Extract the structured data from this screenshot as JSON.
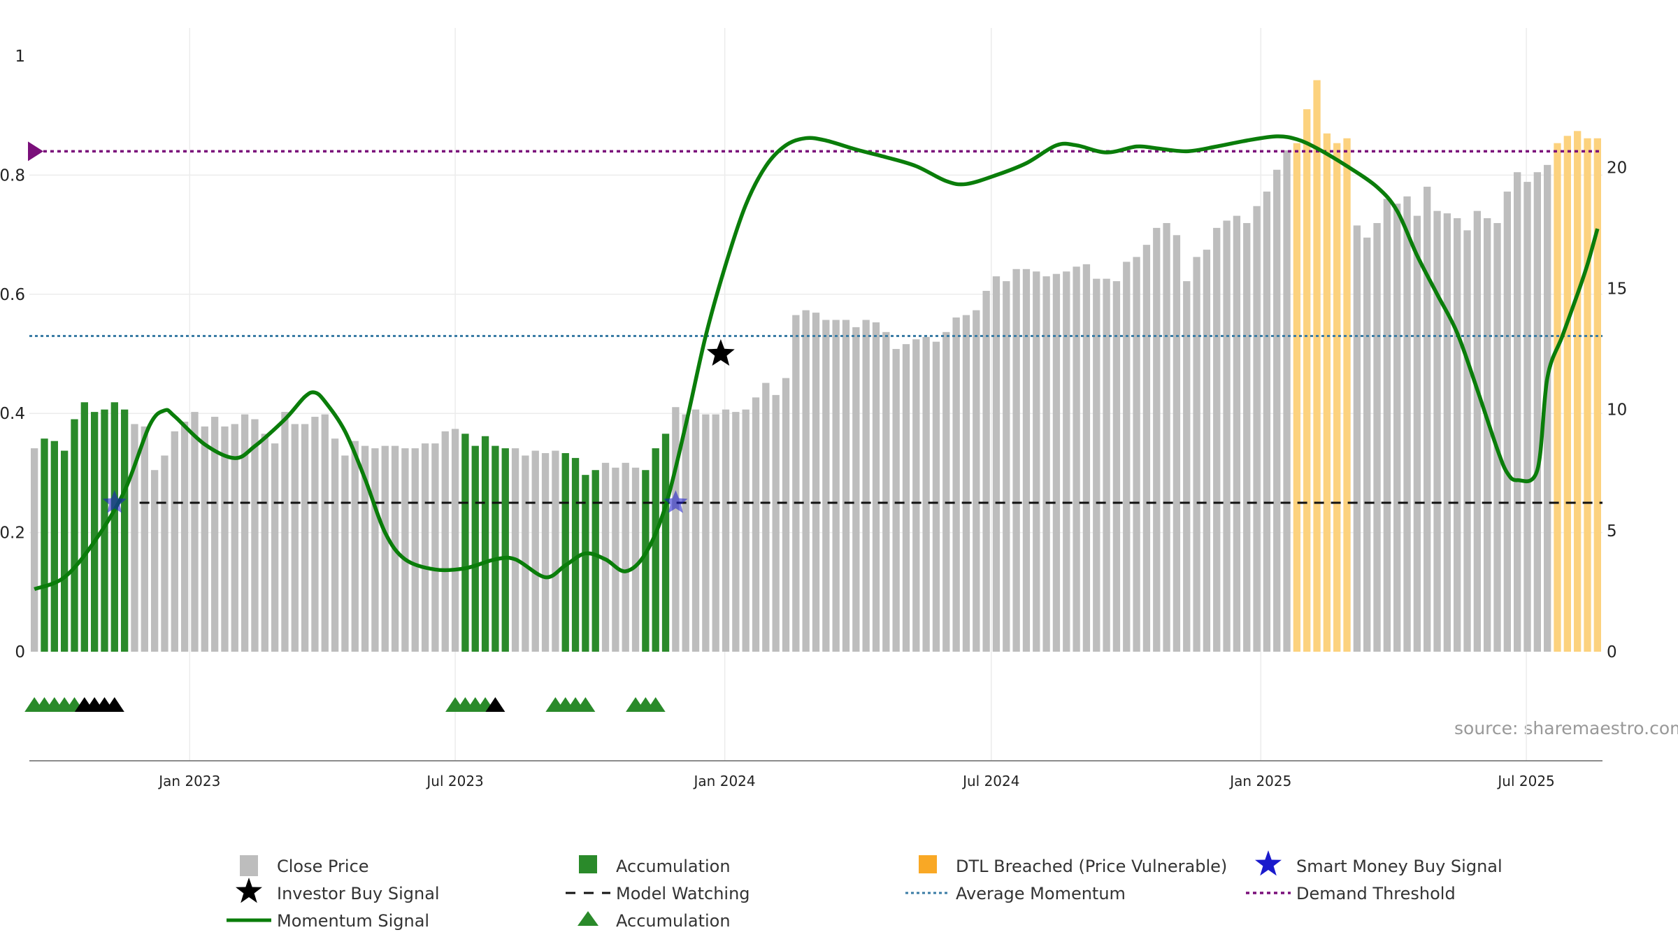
{
  "chart_data": {
    "type": "bar",
    "source": "source: sharemaestro.com",
    "colors": {
      "close": "#bdbdbd",
      "accumulation": "#2a8a2a",
      "dtl": "#fcd27e",
      "momentum": "#0a7d0a",
      "watching": "#111111",
      "average": "#3a7ca5",
      "demand": "#7a0f7a",
      "smart": "#1a1acc"
    },
    "left_axis": {
      "range": [
        0,
        1
      ],
      "ticks": [
        "0",
        "0.2",
        "0.4",
        "0.6",
        "0.8",
        "1"
      ]
    },
    "right_axis": {
      "range": [
        0,
        24.6
      ],
      "ticks": [
        "0",
        "5",
        "10",
        "15",
        "20"
      ]
    },
    "x_ticks": [
      {
        "label": "Jan 2023",
        "index": 15.5
      },
      {
        "label": "Jul 2023",
        "index": 42.0
      },
      {
        "label": "Jan 2024",
        "index": 68.9
      },
      {
        "label": "Jul 2024",
        "index": 95.5
      },
      {
        "label": "Jan 2025",
        "index": 122.4
      },
      {
        "label": "Jul 2025",
        "index": 148.9
      }
    ],
    "close_prices": [
      8.4,
      8.8,
      8.7,
      8.3,
      9.6,
      10.3,
      9.9,
      10.0,
      10.3,
      10.0,
      9.4,
      9.3,
      7.5,
      8.1,
      9.1,
      9.5,
      9.9,
      9.3,
      9.7,
      9.3,
      9.4,
      9.8,
      9.6,
      9.0,
      8.6,
      9.9,
      9.4,
      9.4,
      9.7,
      9.8,
      8.8,
      8.1,
      8.7,
      8.5,
      8.4,
      8.5,
      8.5,
      8.4,
      8.4,
      8.6,
      8.6,
      9.1,
      9.2,
      9.0,
      8.5,
      8.9,
      8.5,
      8.4,
      8.4,
      8.1,
      8.3,
      8.2,
      8.3,
      8.2,
      8.0,
      7.3,
      7.5,
      7.8,
      7.6,
      7.8,
      7.6,
      7.5,
      8.4,
      9.0,
      10.1,
      9.8,
      10.0,
      9.8,
      9.8,
      10.0,
      9.9,
      10.0,
      10.5,
      11.1,
      10.6,
      11.3,
      13.9,
      14.1,
      14.0,
      13.7,
      13.7,
      13.7,
      13.4,
      13.7,
      13.6,
      13.2,
      12.5,
      12.7,
      12.9,
      13.0,
      12.8,
      13.2,
      13.8,
      13.9,
      14.1,
      14.9,
      15.5,
      15.3,
      15.8,
      15.8,
      15.7,
      15.5,
      15.6,
      15.7,
      15.9,
      16.0,
      15.4,
      15.4,
      15.3,
      16.1,
      16.3,
      16.8,
      17.5,
      17.7,
      17.2,
      15.3,
      16.3,
      16.6,
      17.5,
      17.8,
      18.0,
      17.7,
      18.4,
      19.0,
      19.9,
      20.7,
      21.0,
      22.4,
      23.6,
      21.4,
      21.0,
      21.2,
      17.6,
      17.1,
      17.7,
      18.7,
      18.5,
      18.8,
      18.0,
      19.2,
      18.2,
      18.1,
      17.9,
      17.4,
      18.2,
      17.9,
      17.7,
      19.0,
      19.8,
      19.4,
      19.8,
      20.1,
      21.0,
      21.3,
      21.5,
      21.2,
      21.2
    ],
    "accumulation_bars": [
      1,
      2,
      3,
      4,
      5,
      6,
      7,
      8,
      9,
      43,
      44,
      45,
      46,
      47,
      53,
      54,
      55,
      56,
      61,
      62,
      63
    ],
    "dtl_bars": [
      126,
      127,
      128,
      129,
      130,
      131,
      152,
      153,
      154,
      155,
      156
    ],
    "momentum_keypoints": [
      [
        0,
        0.105
      ],
      [
        3,
        0.125
      ],
      [
        6,
        0.185
      ],
      [
        9,
        0.27
      ],
      [
        11.5,
        0.38
      ],
      [
        13,
        0.405
      ],
      [
        14,
        0.395
      ],
      [
        17,
        0.348
      ],
      [
        20,
        0.325
      ],
      [
        22,
        0.345
      ],
      [
        25,
        0.39
      ],
      [
        27,
        0.428
      ],
      [
        28,
        0.435
      ],
      [
        29,
        0.42
      ],
      [
        31,
        0.37
      ],
      [
        33,
        0.29
      ],
      [
        35,
        0.2
      ],
      [
        37,
        0.155
      ],
      [
        40,
        0.138
      ],
      [
        43,
        0.14
      ],
      [
        46,
        0.155
      ],
      [
        48,
        0.155
      ],
      [
        51,
        0.125
      ],
      [
        53,
        0.145
      ],
      [
        55,
        0.165
      ],
      [
        57,
        0.155
      ],
      [
        59,
        0.135
      ],
      [
        61,
        0.165
      ],
      [
        63,
        0.245
      ],
      [
        65,
        0.38
      ],
      [
        67,
        0.53
      ],
      [
        69,
        0.65
      ],
      [
        71,
        0.75
      ],
      [
        73,
        0.815
      ],
      [
        75,
        0.85
      ],
      [
        77,
        0.862
      ],
      [
        79,
        0.858
      ],
      [
        82,
        0.843
      ],
      [
        85,
        0.83
      ],
      [
        88,
        0.815
      ],
      [
        91,
        0.79
      ],
      [
        93,
        0.785
      ],
      [
        96,
        0.8
      ],
      [
        99,
        0.82
      ],
      [
        102,
        0.85
      ],
      [
        104,
        0.85
      ],
      [
        107,
        0.838
      ],
      [
        110,
        0.848
      ],
      [
        112,
        0.845
      ],
      [
        115,
        0.84
      ],
      [
        118,
        0.848
      ],
      [
        121,
        0.858
      ],
      [
        124,
        0.865
      ],
      [
        126,
        0.86
      ],
      [
        128,
        0.845
      ],
      [
        131,
        0.815
      ],
      [
        134,
        0.78
      ],
      [
        136,
        0.74
      ],
      [
        138,
        0.665
      ],
      [
        140,
        0.6
      ],
      [
        142,
        0.535
      ],
      [
        144,
        0.44
      ],
      [
        146,
        0.34
      ],
      [
        147,
        0.3
      ],
      [
        148,
        0.288
      ],
      [
        150,
        0.305
      ],
      [
        151,
        0.46
      ],
      [
        152.5,
        0.53
      ],
      [
        154,
        0.6
      ],
      [
        155,
        0.65
      ],
      [
        156,
        0.71
      ]
    ],
    "model_watching": {
      "value": 0.25,
      "start_index": 11
    },
    "average_momentum": 0.53,
    "demand_threshold": 0.84,
    "investor_buy_signal": {
      "index": 68.5,
      "value": 0.5
    },
    "smart_money_signals": [
      {
        "index": 8,
        "value": 0.25
      },
      {
        "index": 64,
        "value": 0.25
      }
    ],
    "markers": {
      "accumulation": [
        0,
        1,
        2,
        3,
        4,
        42,
        43,
        44,
        45,
        52,
        53,
        54,
        55,
        60,
        61,
        62
      ],
      "model_watching": [
        5,
        6,
        7,
        8,
        46
      ]
    },
    "legend": [
      {
        "label": "Close Price",
        "kind": "close"
      },
      {
        "label": "Accumulation",
        "kind": "accumulation"
      },
      {
        "label": "DTL Breached (Price Vulnerable)",
        "kind": "dtl"
      },
      {
        "label": "Smart Money Buy Signal",
        "kind": "smart"
      },
      {
        "label": "Investor Buy Signal",
        "kind": "investor"
      },
      {
        "label": "Model Watching",
        "kind": "watching"
      },
      {
        "label": "Average Momentum",
        "kind": "average"
      },
      {
        "label": "Demand Threshold",
        "kind": "demand"
      },
      {
        "label": "Momentum Signal",
        "kind": "momentum"
      },
      {
        "label": "Accumulation",
        "kind": "triangle"
      }
    ]
  }
}
